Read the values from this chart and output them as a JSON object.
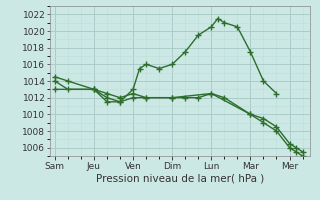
{
  "background_color": "#cce8e4",
  "grid_color_major": "#aaccc8",
  "grid_color_minor": "#c0deda",
  "line_color": "#2d6e2d",
  "marker_color": "#2d6e2d",
  "x_labels": [
    "Sam",
    "Jeu",
    "Ven",
    "Dim",
    "Lun",
    "Mar",
    "Mer"
  ],
  "x_ticks_pos": [
    0,
    1.5,
    3.0,
    4.5,
    6.0,
    7.5,
    9.0
  ],
  "xlim": [
    -0.2,
    9.8
  ],
  "series1_x": [
    0.0,
    0.5,
    1.5,
    2.0,
    2.5,
    3.0,
    3.25,
    3.5,
    4.0,
    4.5,
    5.0,
    5.5,
    6.0,
    6.25,
    6.5,
    7.0,
    7.5,
    8.0,
    8.5
  ],
  "series1_y": [
    1014.5,
    1014.0,
    1013.0,
    1011.5,
    1011.5,
    1013.0,
    1015.5,
    1016.0,
    1015.5,
    1016.0,
    1017.5,
    1019.5,
    1020.5,
    1021.5,
    1021.0,
    1020.5,
    1017.5,
    1014.0,
    1012.5
  ],
  "series2_x": [
    0.0,
    0.5,
    1.5,
    2.0,
    2.5,
    3.0,
    3.5,
    4.5,
    5.0,
    5.5,
    6.0,
    6.5,
    7.5,
    8.0,
    8.5,
    9.0,
    9.25,
    9.5
  ],
  "series2_y": [
    1014.0,
    1013.0,
    1013.0,
    1012.5,
    1012.0,
    1012.5,
    1012.0,
    1012.0,
    1012.0,
    1012.0,
    1012.5,
    1012.0,
    1010.0,
    1009.5,
    1008.5,
    1006.5,
    1006.0,
    1005.5
  ],
  "series3_x": [
    0.0,
    1.5,
    2.0,
    2.5,
    3.0,
    3.5,
    4.5,
    6.0,
    7.5,
    8.0,
    8.5,
    9.0,
    9.25,
    9.5
  ],
  "series3_y": [
    1013.0,
    1013.0,
    1012.0,
    1011.5,
    1012.0,
    1012.0,
    1012.0,
    1012.5,
    1010.0,
    1009.0,
    1008.0,
    1006.0,
    1005.5,
    1005.0
  ],
  "ylim": [
    1005,
    1023
  ],
  "yticks": [
    1006,
    1008,
    1010,
    1012,
    1014,
    1016,
    1018,
    1020,
    1022
  ],
  "xlabel": "Pression niveau de la mer( hPa )",
  "xlabel_fontsize": 7.5,
  "tick_fontsize": 6.5
}
